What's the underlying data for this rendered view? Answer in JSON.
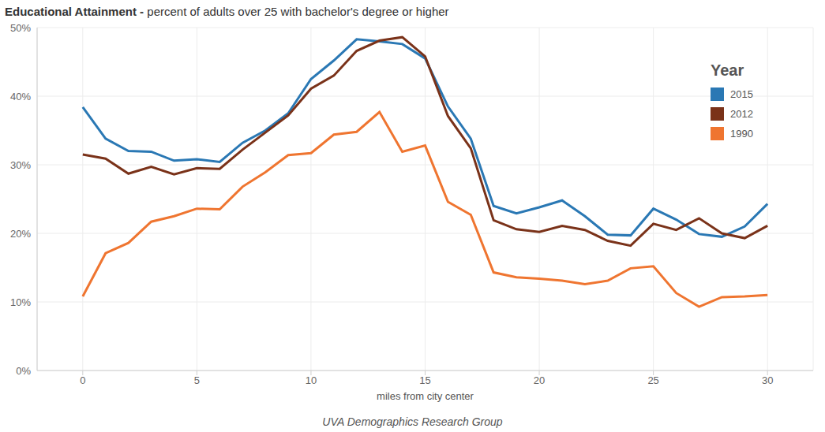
{
  "chart_data": {
    "type": "line",
    "title": "Educational Attainment -",
    "subtitle": "percent of adults over 25 with bachelor's degree or higher",
    "x_label": "miles from city center",
    "legend_title": "Year",
    "caption": "UVA Demographics Research Group",
    "x": [
      0,
      1,
      2,
      3,
      4,
      5,
      6,
      7,
      8,
      9,
      10,
      11,
      12,
      13,
      14,
      15,
      16,
      17,
      18,
      19,
      20,
      21,
      22,
      23,
      24,
      25,
      26,
      27,
      28,
      29,
      30
    ],
    "series": [
      {
        "name": "2015",
        "color": "#2a78b4",
        "values": [
          38.4,
          33.8,
          32.0,
          31.9,
          30.6,
          30.8,
          30.4,
          33.2,
          35.0,
          37.5,
          42.5,
          45.2,
          48.3,
          48.0,
          47.6,
          45.5,
          38.5,
          33.8,
          24.0,
          22.9,
          23.8,
          24.8,
          22.5,
          19.8,
          19.7,
          23.6,
          22.0,
          19.9,
          19.5,
          21.0,
          24.3
        ]
      },
      {
        "name": "2012",
        "color": "#7a3219",
        "values": [
          31.5,
          30.9,
          28.7,
          29.7,
          28.6,
          29.5,
          29.4,
          32.2,
          34.7,
          37.2,
          41.1,
          43.0,
          46.6,
          48.1,
          48.6,
          45.8,
          37.1,
          32.4,
          21.9,
          20.6,
          20.2,
          21.1,
          20.5,
          18.9,
          18.2,
          21.4,
          20.5,
          22.2,
          20.0,
          19.3,
          21.1
        ]
      },
      {
        "name": "1990",
        "color": "#ef7530",
        "values": [
          10.8,
          17.1,
          18.6,
          21.7,
          22.5,
          23.6,
          23.5,
          26.8,
          28.9,
          31.4,
          31.7,
          34.4,
          34.8,
          37.7,
          31.9,
          32.8,
          24.6,
          22.7,
          14.3,
          13.6,
          13.4,
          13.1,
          12.6,
          13.1,
          14.9,
          15.2,
          11.3,
          9.3,
          10.7,
          10.8,
          11.0
        ]
      }
    ],
    "xlim": [
      -2,
      32
    ],
    "xticks": [
      0,
      5,
      10,
      15,
      20,
      25,
      30
    ],
    "ylim": [
      0,
      50
    ],
    "yticks": [
      {
        "value": 0,
        "label": "0%"
      },
      {
        "value": 10,
        "label": "10%"
      },
      {
        "value": 20,
        "label": "20%"
      },
      {
        "value": 30,
        "label": "30%"
      },
      {
        "value": 40,
        "label": "40%"
      },
      {
        "value": 50,
        "label": "50%"
      }
    ],
    "grid": true,
    "legend": "upper right"
  }
}
